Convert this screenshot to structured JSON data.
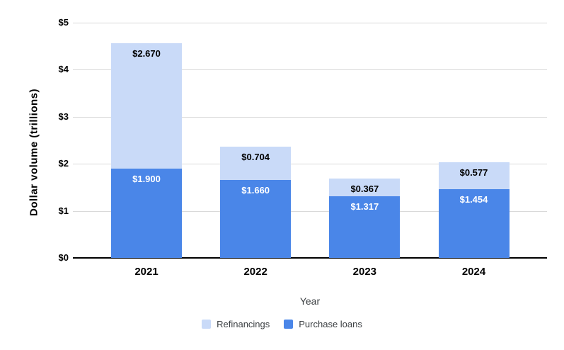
{
  "chart_data": {
    "type": "bar",
    "stacked": true,
    "title": "",
    "xlabel": "Year",
    "ylabel": "Dollar volume (trillions)",
    "categories": [
      "2021",
      "2022",
      "2023",
      "2024"
    ],
    "series": [
      {
        "name": "Purchase loans",
        "stack": "bottom",
        "values": [
          1.9,
          1.66,
          1.317,
          1.454
        ],
        "labels": [
          "$1.900",
          "$1.660",
          "$1.317",
          "$1.454"
        ],
        "color": "#4a86e8",
        "label_color": "#ffffff"
      },
      {
        "name": "Refinancings",
        "stack": "top",
        "values": [
          2.67,
          0.704,
          0.367,
          0.577
        ],
        "labels": [
          "$2.670",
          "$0.704",
          "$0.367",
          "$0.577"
        ],
        "color": "#c9daf8",
        "label_color": "#000000"
      }
    ],
    "ylim": [
      0,
      5
    ],
    "yticks": [
      0,
      1,
      2,
      3,
      4,
      5
    ],
    "ytick_labels": [
      "$0",
      "$1",
      "$2",
      "$3",
      "$4",
      "$5"
    ],
    "grid": true,
    "legend_position": "bottom"
  },
  "legend": {
    "items": [
      {
        "label": "Refinancings",
        "color": "#c9daf8"
      },
      {
        "label": "Purchase loans",
        "color": "#4a86e8"
      }
    ]
  },
  "colors": {
    "gridline": "#d9d9d9",
    "baseline": "#000000",
    "background": "#ffffff",
    "tick_text": "#000000",
    "legend_text": "#3c4043"
  }
}
